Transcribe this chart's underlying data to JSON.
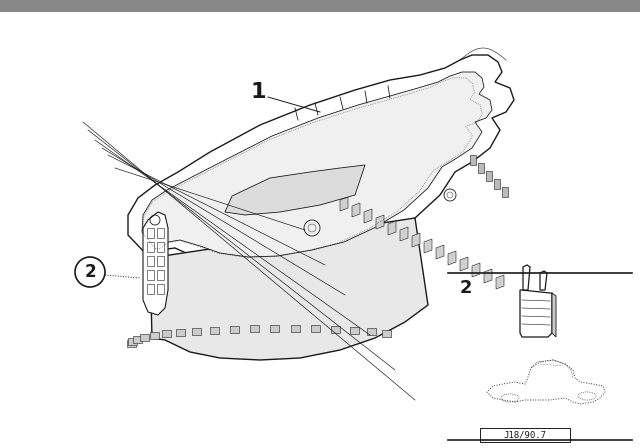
{
  "background_color": "#c8c8c8",
  "panel_color": "#ffffff",
  "line_color": "#1a1a1a",
  "part1_label": "1",
  "part2_label": "2",
  "diagram_id": "J18/90.7",
  "fig_width": 6.4,
  "fig_height": 4.48,
  "dpi": 100,
  "top_bar_color": "#888888",
  "top_bar_height": 12
}
